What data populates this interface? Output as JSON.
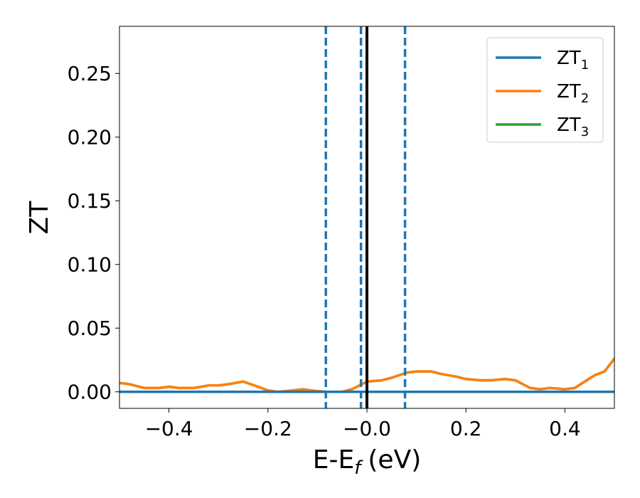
{
  "chart_data": {
    "type": "line",
    "xlabel": "E-E",
    "xlabel_sub": "f",
    "xlabel_unit": "(eV)",
    "ylabel": "ZT",
    "xlim": [
      -0.5,
      0.5
    ],
    "ylim": [
      -0.013,
      0.287
    ],
    "xticks": [
      -0.4,
      -0.2,
      0.0,
      0.2,
      0.4
    ],
    "xtick_labels": [
      "−0.4",
      "−0.2",
      "−0.0",
      "0.2",
      "0.4"
    ],
    "yticks": [
      0.0,
      0.05,
      0.1,
      0.15,
      0.2,
      0.25
    ],
    "ytick_labels": [
      "0.00",
      "0.05",
      "0.10",
      "0.15",
      "0.20",
      "0.25"
    ],
    "legend_position": "top-right",
    "grid": false,
    "vertical_lines": [
      {
        "x": -0.083,
        "style": "dashed",
        "color": "#1f77b4"
      },
      {
        "x": -0.012,
        "style": "dashed",
        "color": "#1f77b4"
      },
      {
        "x": 0.077,
        "style": "dashed",
        "color": "#1f77b4"
      },
      {
        "x": 0.0,
        "style": "solid",
        "color": "#000000"
      }
    ],
    "series": [
      {
        "name": "ZT",
        "subscript": "1",
        "color": "#1f77b4",
        "x": [
          -0.5,
          -0.3,
          -0.1,
          0.0,
          0.1,
          0.3,
          0.5
        ],
        "y": [
          0.0,
          0.0,
          0.0,
          0.0,
          0.0,
          0.0,
          0.0
        ]
      },
      {
        "name": "ZT",
        "subscript": "2",
        "color": "#ff7f0e",
        "x": [
          -0.5,
          -0.48,
          -0.45,
          -0.42,
          -0.4,
          -0.38,
          -0.35,
          -0.32,
          -0.3,
          -0.28,
          -0.25,
          -0.22,
          -0.2,
          -0.18,
          -0.15,
          -0.13,
          -0.1,
          -0.08,
          -0.05,
          -0.03,
          -0.01,
          0.0,
          0.03,
          0.05,
          0.08,
          0.1,
          0.13,
          0.15,
          0.18,
          0.2,
          0.23,
          0.25,
          0.28,
          0.3,
          0.33,
          0.35,
          0.37,
          0.4,
          0.42,
          0.44,
          0.46,
          0.48,
          0.5
        ],
        "y": [
          0.007,
          0.006,
          0.003,
          0.003,
          0.004,
          0.003,
          0.003,
          0.005,
          0.005,
          0.006,
          0.008,
          0.004,
          0.001,
          0.0,
          0.001,
          0.002,
          0.0005,
          0.0,
          0.0,
          0.002,
          0.006,
          0.008,
          0.009,
          0.011,
          0.015,
          0.016,
          0.016,
          0.014,
          0.012,
          0.01,
          0.009,
          0.009,
          0.01,
          0.009,
          0.003,
          0.002,
          0.003,
          0.002,
          0.003,
          0.008,
          0.013,
          0.016,
          0.026
        ]
      },
      {
        "name": "ZT",
        "subscript": "3",
        "color": "#2ca02c",
        "x": [
          -0.5,
          -0.48,
          -0.45,
          -0.42,
          -0.4,
          -0.38,
          -0.35,
          -0.32,
          -0.3,
          -0.28,
          -0.25,
          -0.22,
          -0.2,
          -0.18,
          -0.15,
          -0.13,
          -0.1,
          -0.08,
          -0.05,
          -0.03,
          -0.01,
          0.0,
          0.03,
          0.05,
          0.08,
          0.1,
          0.13,
          0.15,
          0.18,
          0.2,
          0.23,
          0.25,
          0.28,
          0.3,
          0.33,
          0.35,
          0.37,
          0.4,
          0.42,
          0.44,
          0.46,
          0.48,
          0.5
        ],
        "y": [
          0.007,
          0.006,
          0.003,
          0.003,
          0.004,
          0.003,
          0.003,
          0.005,
          0.005,
          0.006,
          0.008,
          0.004,
          0.001,
          0.0,
          0.001,
          0.002,
          0.0005,
          0.0,
          0.0,
          0.002,
          0.006,
          0.008,
          0.009,
          0.011,
          0.015,
          0.016,
          0.016,
          0.014,
          0.012,
          0.01,
          0.009,
          0.009,
          0.01,
          0.009,
          0.003,
          0.002,
          0.003,
          0.002,
          0.003,
          0.008,
          0.013,
          0.016,
          0.026
        ]
      }
    ]
  }
}
